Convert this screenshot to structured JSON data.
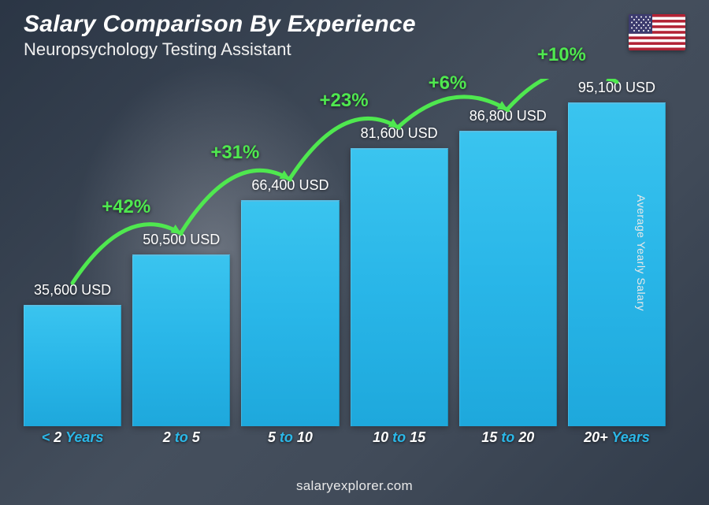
{
  "header": {
    "title": "Salary Comparison By Experience",
    "subtitle": "Neuropsychology Testing Assistant",
    "flag": "usa"
  },
  "chart": {
    "type": "bar",
    "ylabel": "Average Yearly Salary",
    "currency": "USD",
    "max_value": 95100,
    "bar_color": "#29b6e8",
    "delta_color": "#4fe84f",
    "text_color": "#ffffff",
    "accent_color": "#2bb8e8",
    "background": "#4a5a6a",
    "title_fontsize": 30,
    "subtitle_fontsize": 22,
    "value_fontsize": 18,
    "xlabel_fontsize": 18,
    "delta_fontsize": 24,
    "bars": [
      {
        "label_prefix": "< ",
        "label_num": "2",
        "label_suffix": " Years",
        "value": 35600,
        "value_label": "35,600 USD"
      },
      {
        "label_prefix": "",
        "label_num": "2",
        "label_mid": " to ",
        "label_num2": "5",
        "label_suffix": "",
        "value": 50500,
        "value_label": "50,500 USD",
        "delta": "+42%"
      },
      {
        "label_prefix": "",
        "label_num": "5",
        "label_mid": " to ",
        "label_num2": "10",
        "label_suffix": "",
        "value": 66400,
        "value_label": "66,400 USD",
        "delta": "+31%"
      },
      {
        "label_prefix": "",
        "label_num": "10",
        "label_mid": " to ",
        "label_num2": "15",
        "label_suffix": "",
        "value": 81600,
        "value_label": "81,600 USD",
        "delta": "+23%"
      },
      {
        "label_prefix": "",
        "label_num": "15",
        "label_mid": " to ",
        "label_num2": "20",
        "label_suffix": "",
        "value": 86800,
        "value_label": "86,800 USD",
        "delta": "+6%"
      },
      {
        "label_prefix": "",
        "label_num": "20+",
        "label_suffix": " Years",
        "value": 95100,
        "value_label": "95,100 USD",
        "delta": "+10%"
      }
    ]
  },
  "footer": {
    "site": "salaryexplorer.com"
  }
}
